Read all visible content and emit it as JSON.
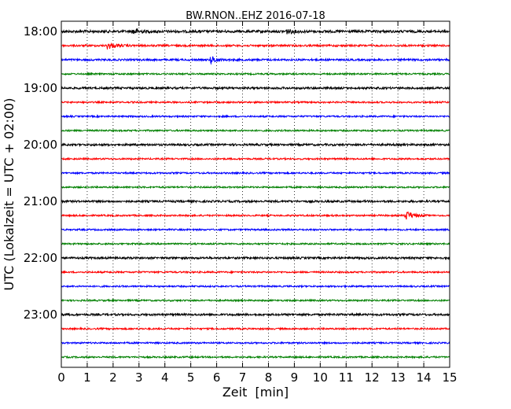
{
  "chart_data": {
    "type": "line",
    "title": "BW.RNON..EHZ 2016-07-18",
    "xlabel": "Zeit  [min]",
    "ylabel": "UTC (Lokalzeit = UTC + 02:00)",
    "xlim": [
      0,
      15
    ],
    "x_ticks": [
      "0",
      "1",
      "2",
      "3",
      "4",
      "5",
      "6",
      "7",
      "8",
      "9",
      "10",
      "11",
      "12",
      "13",
      "14",
      "15"
    ],
    "y_ticks": [
      "18:00",
      "19:00",
      "20:00",
      "21:00",
      "22:00",
      "23:00"
    ],
    "grid": "vertical-dotted",
    "trace_colors": [
      "#000000",
      "#ff0000",
      "#0000ff",
      "#008000"
    ],
    "traces": [
      {
        "start": "18:00",
        "color": "#000000",
        "noise": 1.6,
        "events": [
          {
            "x": 2.8,
            "amp": 3
          },
          {
            "x": 8.7,
            "amp": 2.5
          }
        ]
      },
      {
        "start": "18:15",
        "color": "#ff0000",
        "noise": 1.2,
        "events": [
          {
            "x": 1.8,
            "amp": 4
          }
        ]
      },
      {
        "start": "18:30",
        "color": "#0000ff",
        "noise": 1.2,
        "events": [
          {
            "x": 5.8,
            "amp": 4
          }
        ]
      },
      {
        "start": "18:45",
        "color": "#008000",
        "noise": 1.0,
        "events": []
      },
      {
        "start": "19:00",
        "color": "#000000",
        "noise": 1.3,
        "events": []
      },
      {
        "start": "19:15",
        "color": "#ff0000",
        "noise": 1.0,
        "events": []
      },
      {
        "start": "19:30",
        "color": "#0000ff",
        "noise": 1.0,
        "events": []
      },
      {
        "start": "19:45",
        "color": "#008000",
        "noise": 1.0,
        "events": []
      },
      {
        "start": "20:00",
        "color": "#000000",
        "noise": 1.3,
        "events": []
      },
      {
        "start": "20:15",
        "color": "#ff0000",
        "noise": 1.0,
        "events": []
      },
      {
        "start": "20:30",
        "color": "#0000ff",
        "noise": 1.0,
        "events": []
      },
      {
        "start": "20:45",
        "color": "#008000",
        "noise": 1.0,
        "events": []
      },
      {
        "start": "21:00",
        "color": "#000000",
        "noise": 1.3,
        "events": []
      },
      {
        "start": "21:15",
        "color": "#ff0000",
        "noise": 1.0,
        "events": [
          {
            "x": 13.3,
            "amp": 6
          }
        ]
      },
      {
        "start": "21:30",
        "color": "#0000ff",
        "noise": 1.0,
        "events": []
      },
      {
        "start": "21:45",
        "color": "#008000",
        "noise": 1.0,
        "events": []
      },
      {
        "start": "22:00",
        "color": "#000000",
        "noise": 1.3,
        "events": []
      },
      {
        "start": "22:15",
        "color": "#ff0000",
        "noise": 1.0,
        "events": []
      },
      {
        "start": "22:30",
        "color": "#0000ff",
        "noise": 1.0,
        "events": []
      },
      {
        "start": "22:45",
        "color": "#008000",
        "noise": 1.0,
        "events": []
      },
      {
        "start": "23:00",
        "color": "#000000",
        "noise": 1.3,
        "events": []
      },
      {
        "start": "23:15",
        "color": "#ff0000",
        "noise": 1.0,
        "events": []
      },
      {
        "start": "23:30",
        "color": "#0000ff",
        "noise": 1.0,
        "events": []
      },
      {
        "start": "23:45",
        "color": "#008000",
        "noise": 1.0,
        "events": []
      }
    ]
  }
}
